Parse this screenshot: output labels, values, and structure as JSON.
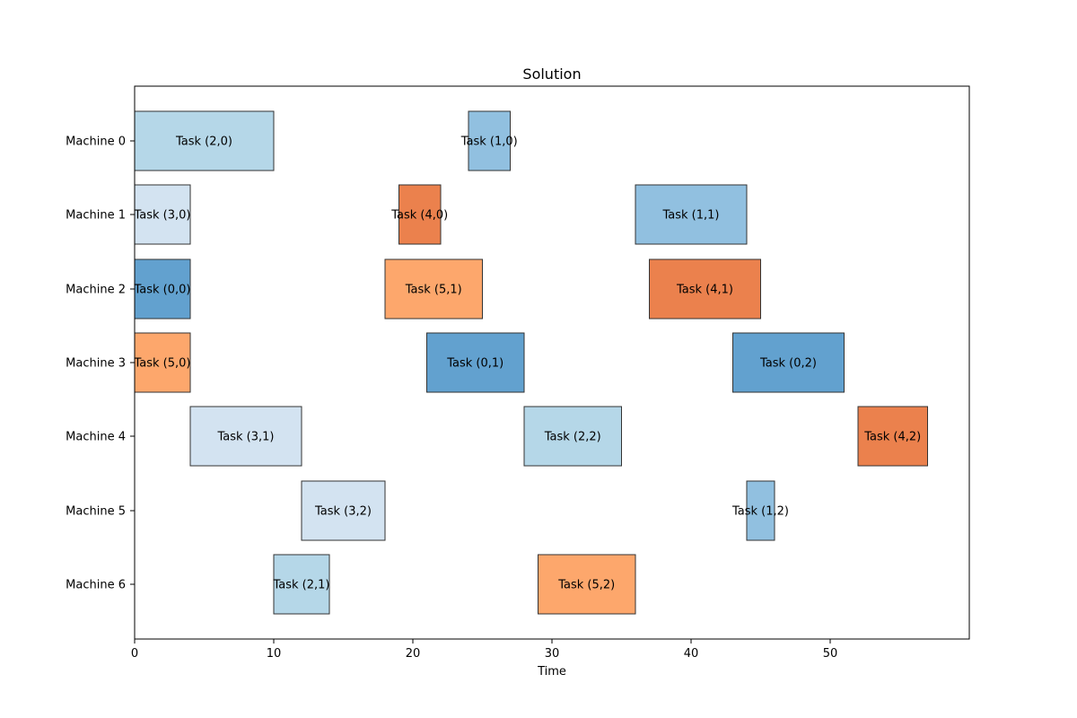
{
  "chart_data": {
    "type": "gantt",
    "title": "Solution",
    "xlabel": "Time",
    "ylabel": "",
    "xlim": [
      0,
      60
    ],
    "x_ticks": [
      0,
      10,
      20,
      30,
      40,
      50
    ],
    "machines": [
      "Machine 0",
      "Machine 1",
      "Machine 2",
      "Machine 3",
      "Machine 4",
      "Machine 5",
      "Machine 6"
    ],
    "grid": false,
    "colors": {
      "job_0": "#62a1cf",
      "job_1": "#91c0e0",
      "job_2": "#b5d7e8",
      "job_3": "#d3e3f1",
      "job_4": "#eb814d",
      "job_5": "#fda76c"
    },
    "tasks": [
      {
        "label": "Task (2,0)",
        "job": 2,
        "machine": 0,
        "start": 0,
        "end": 10
      },
      {
        "label": "Task (1,0)",
        "job": 1,
        "machine": 0,
        "start": 24,
        "end": 27
      },
      {
        "label": "Task (3,0)",
        "job": 3,
        "machine": 1,
        "start": 0,
        "end": 4
      },
      {
        "label": "Task (4,0)",
        "job": 4,
        "machine": 1,
        "start": 19,
        "end": 22
      },
      {
        "label": "Task (1,1)",
        "job": 1,
        "machine": 1,
        "start": 36,
        "end": 44
      },
      {
        "label": "Task (0,0)",
        "job": 0,
        "machine": 2,
        "start": 0,
        "end": 4
      },
      {
        "label": "Task (5,1)",
        "job": 5,
        "machine": 2,
        "start": 18,
        "end": 25
      },
      {
        "label": "Task (4,1)",
        "job": 4,
        "machine": 2,
        "start": 37,
        "end": 45
      },
      {
        "label": "Task (5,0)",
        "job": 5,
        "machine": 3,
        "start": 0,
        "end": 4
      },
      {
        "label": "Task (0,1)",
        "job": 0,
        "machine": 3,
        "start": 21,
        "end": 28
      },
      {
        "label": "Task (0,2)",
        "job": 0,
        "machine": 3,
        "start": 43,
        "end": 51
      },
      {
        "label": "Task (3,1)",
        "job": 3,
        "machine": 4,
        "start": 4,
        "end": 12
      },
      {
        "label": "Task (2,2)",
        "job": 2,
        "machine": 4,
        "start": 28,
        "end": 35
      },
      {
        "label": "Task (4,2)",
        "job": 4,
        "machine": 4,
        "start": 52,
        "end": 57
      },
      {
        "label": "Task (3,2)",
        "job": 3,
        "machine": 5,
        "start": 12,
        "end": 18
      },
      {
        "label": "Task (1,2)",
        "job": 1,
        "machine": 5,
        "start": 44,
        "end": 46
      },
      {
        "label": "Task (2,1)",
        "job": 2,
        "machine": 6,
        "start": 10,
        "end": 14
      },
      {
        "label": "Task (5,2)",
        "job": 5,
        "machine": 6,
        "start": 29,
        "end": 36
      }
    ]
  }
}
